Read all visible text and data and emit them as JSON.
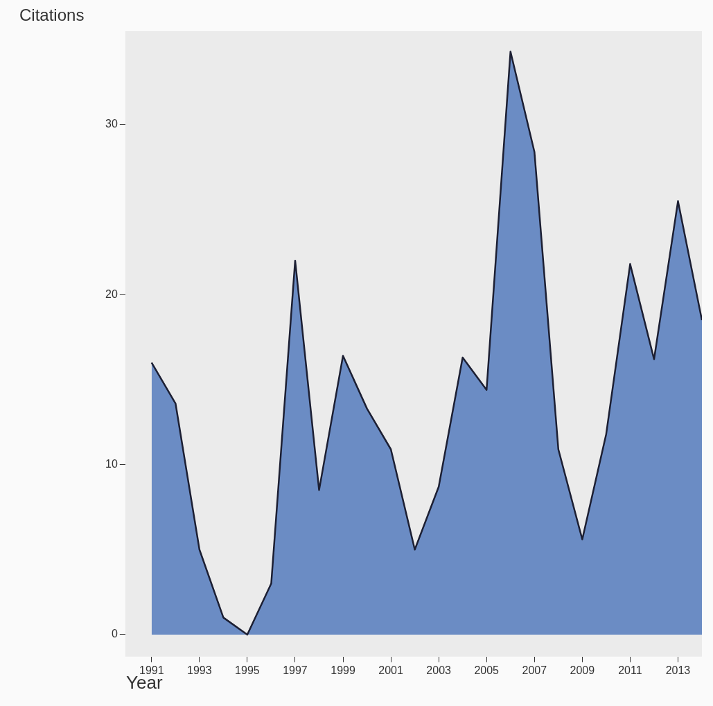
{
  "chart_data": {
    "type": "area",
    "xlabel": "Year",
    "ylabel": "Citations",
    "x": [
      1991,
      1992,
      1993,
      1994,
      1995,
      1996,
      1997,
      1998,
      1999,
      2000,
      2001,
      2002,
      2003,
      2004,
      2005,
      2006,
      2007,
      2008,
      2009,
      2010,
      2011,
      2012,
      2013,
      2014
    ],
    "series": [
      {
        "color": "#6b8cc4",
        "values": [
          16,
          13.6,
          5,
          1,
          0,
          3,
          22,
          8.5,
          16.4,
          13.3,
          10.9,
          5,
          8.7,
          16.3,
          14.4,
          34.3,
          28.4,
          10.9,
          5.6,
          11.8,
          21.8,
          16.2,
          25.5,
          18.5
        ]
      }
    ],
    "xlim": [
      1989.9,
      2014
    ],
    "xticks": [
      1991,
      1993,
      1995,
      1997,
      1999,
      2001,
      2003,
      2005,
      2007,
      2009,
      2011,
      2013
    ],
    "ylim": [
      -1.3,
      35.5
    ],
    "yticks": [
      0,
      10,
      20,
      30
    ],
    "grid": false,
    "legend": false
  }
}
